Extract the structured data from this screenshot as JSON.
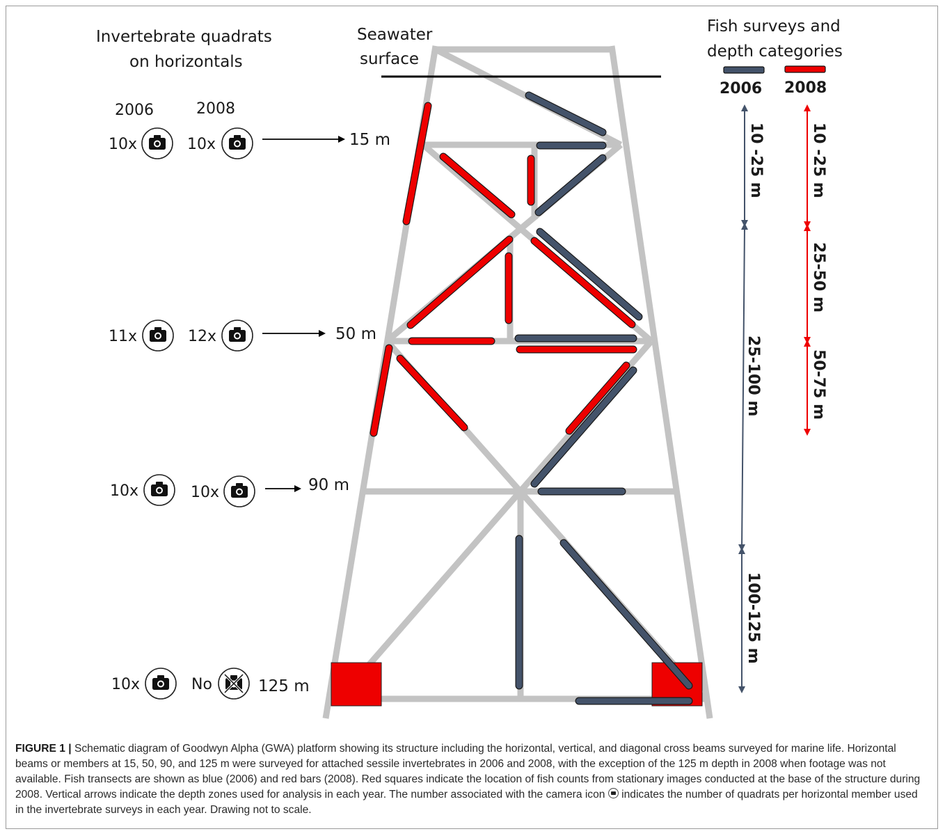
{
  "left_header": {
    "line1": "Invertebrate quadrats",
    "line2": "on horizontals"
  },
  "years": {
    "y2006": "2006",
    "y2008": "2008"
  },
  "depth_rows": [
    {
      "count_2006": "10x",
      "count_2008": "10x",
      "depth": "15 m"
    },
    {
      "count_2006": "11x",
      "count_2008": "12x",
      "depth": "50 m"
    },
    {
      "count_2006": "10x",
      "count_2008": "10x",
      "depth": "90 m"
    },
    {
      "count_2006": "10x",
      "count_2008": "No",
      "depth": "125 m"
    }
  ],
  "surface_label": {
    "line1": "Seawater",
    "line2": "surface"
  },
  "legend": {
    "line1": "Fish surveys and",
    "line2": "depth categories",
    "year_2006": "2006",
    "year_2008": "2008",
    "color_2006": "#44536a",
    "color_2008": "#ee0000"
  },
  "zones_2006": [
    "10 -25 m",
    "25-100 m",
    "100-125 m"
  ],
  "zones_2008": [
    "10 -25 m",
    "25-50 m",
    "50-75 m"
  ],
  "icons": {
    "camera": "camera-icon",
    "camera_unavailable": "camera-crossed-icon"
  },
  "colors": {
    "structure": "#c3c3c3",
    "fish_2006": "#44536a",
    "fish_2008": "#ee0000",
    "stationary": "#ee0000"
  },
  "caption": {
    "label": "FIGURE 1 |",
    "text_before_icon": " Schematic diagram of Goodwyn Alpha (GWA) platform showing its structure including the horizontal, vertical, and diagonal cross beams surveyed for marine life. Horizontal beams or members at 15, 50, 90, and 125 m were surveyed for attached sessile invertebrates in 2006 and 2008, with the exception of the 125 m depth in 2008 when footage was not available. Fish transects are shown as blue (2006) and red bars (2008). Red squares indicate the location of fish counts from stationary images conducted at the base of the structure during 2008. Vertical arrows indicate the depth zones used for analysis in each year. The number associated with the camera icon",
    "text_after_icon": " indicates the number of quadrats per horizontal member used in the invertebrate surveys in each year. Drawing not to scale."
  }
}
